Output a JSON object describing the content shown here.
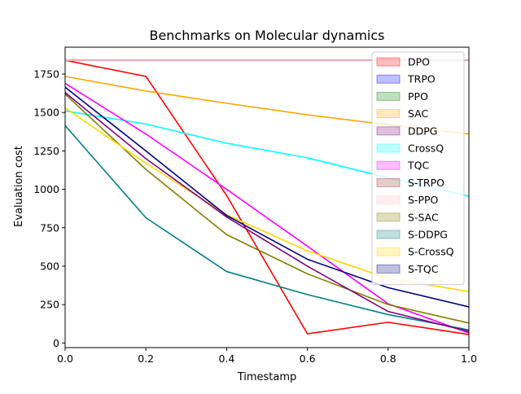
{
  "chart_data": {
    "type": "line",
    "title": "Benchmarks on Molecular dynamics",
    "xlabel": "Timestamp",
    "ylabel": "Evaluation cost",
    "xlim": [
      0.0,
      1.0
    ],
    "ylim": [
      -30,
      1925
    ],
    "x": [
      0.0,
      0.2,
      0.4,
      0.6,
      0.8,
      1.0
    ],
    "x_ticks": [
      0.0,
      0.2,
      0.4,
      0.6,
      0.8,
      1.0
    ],
    "x_tick_labels": [
      "0.0",
      "0.2",
      "0.4",
      "0.6",
      "0.8",
      "1.0"
    ],
    "y_ticks": [
      0,
      250,
      500,
      750,
      1000,
      1250,
      1500,
      1750
    ],
    "y_tick_labels": [
      "0",
      "250",
      "500",
      "750",
      "1000",
      "1250",
      "1500",
      "1750"
    ],
    "grid": false,
    "legend_position": "top-right",
    "series": [
      {
        "name": "DPO",
        "color": "#ff0000",
        "values": [
          1840,
          1735,
          960,
          60,
          135,
          55
        ]
      },
      {
        "name": "TRPO",
        "color": "#0000ff",
        "values": [
          1840,
          1840,
          1840,
          1840,
          1840,
          1840
        ]
      },
      {
        "name": "PPO",
        "color": "#008000",
        "values": [
          1840,
          1840,
          1840,
          1840,
          1840,
          1840
        ]
      },
      {
        "name": "SAC",
        "color": "#ffa500",
        "values": [
          1735,
          1640,
          1560,
          1485,
          1420,
          1360
        ]
      },
      {
        "name": "DDPG",
        "color": "#800080",
        "values": [
          1840,
          1840,
          1840,
          1840,
          1840,
          1840
        ]
      },
      {
        "name": "CrossQ",
        "color": "#00ffff",
        "values": [
          1510,
          1425,
          1300,
          1205,
          1075,
          955
        ]
      },
      {
        "name": "TQC",
        "color": "#ff00ff",
        "values": [
          1690,
          1360,
          1000,
          630,
          255,
          65
        ]
      },
      {
        "name": "S-TRPO",
        "color": "#a52a2a",
        "values": [
          1840,
          1840,
          1840,
          1840,
          1840,
          1840
        ]
      },
      {
        "name": "S-PPO",
        "color": "#ffc0cb",
        "values": [
          1840,
          1840,
          1840,
          1840,
          1840,
          1840
        ]
      },
      {
        "name": "S-SAC",
        "color": "#808000",
        "values": [
          1620,
          1130,
          705,
          450,
          250,
          130
        ]
      },
      {
        "name": "S-DDPG",
        "color": "#008080",
        "values": [
          1415,
          815,
          465,
          315,
          185,
          85
        ]
      },
      {
        "name": "S-CrossQ",
        "color": "#ffd700",
        "values": [
          1530,
          1170,
          835,
          600,
          420,
          335
        ]
      },
      {
        "name": "S-TQC",
        "color": "#000080",
        "values": [
          1665,
          1250,
          830,
          545,
          360,
          235
        ]
      },
      {
        "name": "",
        "color": "#800080",
        "values": [
          1630,
          1200,
          820,
          500,
          205,
          75
        ]
      }
    ]
  }
}
